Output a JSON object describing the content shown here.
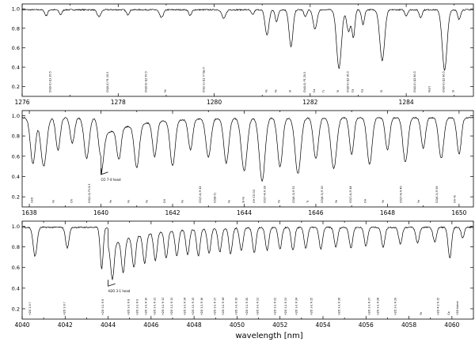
{
  "chart_data": [
    {
      "type": "line",
      "panel": "top",
      "xlim": [
        1276,
        1285.4
      ],
      "ylim": [
        0.1,
        1.05
      ],
      "xticks": [
        1276,
        1278,
        1280,
        1282,
        1284
      ],
      "yticks": [
        0.2,
        0.4,
        0.6,
        0.8,
        1.0
      ],
      "ytick_labels": [
        "0.2",
        "0.4",
        "0.6",
        "0.8",
        "1.0"
      ],
      "continuum": 0.99,
      "lines": [
        {
          "x": 1276.5,
          "depth": 0.06,
          "width": 0.03
        },
        {
          "x": 1276.8,
          "depth": 0.05,
          "width": 0.03
        },
        {
          "x": 1277.6,
          "depth": 0.07,
          "width": 0.04
        },
        {
          "x": 1278.2,
          "depth": 0.05,
          "width": 0.03
        },
        {
          "x": 1278.9,
          "depth": 0.08,
          "width": 0.04
        },
        {
          "x": 1279.5,
          "depth": 0.06,
          "width": 0.03
        },
        {
          "x": 1280.2,
          "depth": 0.09,
          "width": 0.04
        },
        {
          "x": 1280.8,
          "depth": 0.05,
          "width": 0.03
        },
        {
          "x": 1281.1,
          "depth": 0.26,
          "width": 0.04
        },
        {
          "x": 1281.3,
          "depth": 0.12,
          "width": 0.03
        },
        {
          "x": 1281.6,
          "depth": 0.38,
          "width": 0.04
        },
        {
          "x": 1281.9,
          "depth": 0.07,
          "width": 0.03
        },
        {
          "x": 1282.1,
          "depth": 0.2,
          "width": 0.04
        },
        {
          "x": 1282.6,
          "depth": 0.6,
          "width": 0.05
        },
        {
          "x": 1282.8,
          "depth": 0.22,
          "width": 0.04
        },
        {
          "x": 1282.9,
          "depth": 0.28,
          "width": 0.03
        },
        {
          "x": 1283.1,
          "depth": 0.15,
          "width": 0.03
        },
        {
          "x": 1283.5,
          "depth": 0.52,
          "width": 0.05
        },
        {
          "x": 1284.0,
          "depth": 0.06,
          "width": 0.03
        },
        {
          "x": 1284.3,
          "depth": 0.08,
          "width": 0.03
        },
        {
          "x": 1284.8,
          "depth": 0.62,
          "width": 0.05
        },
        {
          "x": 1285.1,
          "depth": 0.1,
          "width": 0.03
        }
      ],
      "annotations": [
        {
          "x": 1276.6,
          "text": "CN(0-0) Q1 20.5"
        },
        {
          "x": 1277.8,
          "text": "CN(0-0) P1 20.5"
        },
        {
          "x": 1278.6,
          "text": "CN(0-0) Q2 50.5"
        },
        {
          "x": 1279.0,
          "text": "Fe"
        },
        {
          "x": 1279.8,
          "text": "CN(1-1) Q1 ?? tau h"
        },
        {
          "x": 1281.1,
          "text": "Fe"
        },
        {
          "x": 1281.3,
          "text": "Fe"
        },
        {
          "x": 1281.6,
          "text": "Si"
        },
        {
          "x": 1281.9,
          "text": "CN(0-0) P1 20.5"
        },
        {
          "x": 1282.1,
          "text": "Ca"
        },
        {
          "x": 1282.3,
          "text": "Ti"
        },
        {
          "x": 1282.6,
          "text": "Si"
        },
        {
          "x": 1282.8,
          "text": "CN(0-0) Q2 90.5"
        },
        {
          "x": 1282.9,
          "text": "Ca"
        },
        {
          "x": 1283.1,
          "text": "Ca"
        },
        {
          "x": 1283.5,
          "text": "Si"
        },
        {
          "x": 1284.2,
          "text": "CN(0-0) Q2 80.5"
        },
        {
          "x": 1284.5,
          "text": "Fe(?)"
        },
        {
          "x": 1284.8,
          "text": "CN(0-0) Q2 80.5"
        },
        {
          "x": 1285.0,
          "text": "Si"
        }
      ]
    },
    {
      "type": "line",
      "panel": "middle",
      "xlim": [
        1637.8,
        1650.4
      ],
      "ylim": [
        0.1,
        1.05
      ],
      "xticks": [
        1638,
        1640,
        1642,
        1644,
        1646,
        1648,
        1650
      ],
      "yticks": [
        0.2,
        0.4,
        0.6,
        0.8,
        1.0
      ],
      "ytick_labels": [
        "0.2",
        "0.4",
        "0.6",
        "0.8",
        "1.0"
      ],
      "continuum": 0.98,
      "lines": [
        {
          "x": 1638.1,
          "depth": 0.45,
          "width": 0.07
        },
        {
          "x": 1638.4,
          "depth": 0.48,
          "width": 0.08
        },
        {
          "x": 1638.8,
          "depth": 0.32,
          "width": 0.06
        },
        {
          "x": 1639.2,
          "depth": 0.25,
          "width": 0.06
        },
        {
          "x": 1639.6,
          "depth": 0.4,
          "width": 0.07
        },
        {
          "x": 1640.0,
          "depth": 0.38,
          "width": 0.07
        },
        {
          "x": 1640.5,
          "depth": 0.3,
          "width": 0.06
        },
        {
          "x": 1641.0,
          "depth": 0.42,
          "width": 0.07
        },
        {
          "x": 1641.5,
          "depth": 0.34,
          "width": 0.06
        },
        {
          "x": 1642.0,
          "depth": 0.45,
          "width": 0.07
        },
        {
          "x": 1642.5,
          "depth": 0.3,
          "width": 0.06
        },
        {
          "x": 1643.0,
          "depth": 0.38,
          "width": 0.07
        },
        {
          "x": 1643.5,
          "depth": 0.44,
          "width": 0.07
        },
        {
          "x": 1644.0,
          "depth": 0.52,
          "width": 0.08
        },
        {
          "x": 1644.5,
          "depth": 0.62,
          "width": 0.08
        },
        {
          "x": 1645.0,
          "depth": 0.48,
          "width": 0.07
        },
        {
          "x": 1645.5,
          "depth": 0.55,
          "width": 0.08
        },
        {
          "x": 1646.0,
          "depth": 0.4,
          "width": 0.07
        },
        {
          "x": 1646.5,
          "depth": 0.5,
          "width": 0.08
        },
        {
          "x": 1647.0,
          "depth": 0.36,
          "width": 0.06
        },
        {
          "x": 1647.5,
          "depth": 0.46,
          "width": 0.07
        },
        {
          "x": 1648.0,
          "depth": 0.32,
          "width": 0.06
        },
        {
          "x": 1648.5,
          "depth": 0.44,
          "width": 0.07
        },
        {
          "x": 1649.0,
          "depth": 0.3,
          "width": 0.06
        },
        {
          "x": 1649.5,
          "depth": 0.4,
          "width": 0.07
        },
        {
          "x": 1650.0,
          "depth": 0.36,
          "width": 0.06
        }
      ],
      "annotations": [
        {
          "x": 1638.1,
          "text": "H2O"
        },
        {
          "x": 1638.7,
          "text": "Fe"
        },
        {
          "x": 1639.2,
          "text": "CN"
        },
        {
          "x": 1639.7,
          "text": "OH(2-0) P1 6.5"
        },
        {
          "x": 1640.3,
          "text": "Fe"
        },
        {
          "x": 1640.8,
          "text": "Fe"
        },
        {
          "x": 1641.3,
          "text": "Fe"
        },
        {
          "x": 1641.8,
          "text": "OH"
        },
        {
          "x": 1642.3,
          "text": "Fe"
        },
        {
          "x": 1642.8,
          "text": "CO(7-4) R 42"
        },
        {
          "x": 1643.2,
          "text": "CO(8-5)"
        },
        {
          "x": 1643.6,
          "text": "Fe"
        },
        {
          "x": 1644.0,
          "text": "Si Fe"
        },
        {
          "x": 1644.3,
          "text": "OH CO CO"
        },
        {
          "x": 1644.6,
          "text": "CO(7-4) R 38"
        },
        {
          "x": 1645.0,
          "text": "Fe"
        },
        {
          "x": 1645.4,
          "text": "CO(6-3) R 52"
        },
        {
          "x": 1645.8,
          "text": "Ti"
        },
        {
          "x": 1646.2,
          "text": "CO(8-5) R 30"
        },
        {
          "x": 1646.6,
          "text": "Fe"
        },
        {
          "x": 1647.0,
          "text": "CO(7-4) R 44"
        },
        {
          "x": 1647.4,
          "text": "OH"
        },
        {
          "x": 1647.9,
          "text": "Fe"
        },
        {
          "x": 1648.4,
          "text": "CO(7-4) R 40"
        },
        {
          "x": 1648.9,
          "text": "Fe"
        },
        {
          "x": 1649.4,
          "text": "CO(6-3) R 56"
        },
        {
          "x": 1649.9,
          "text": "OH Fe"
        }
      ],
      "band_head": {
        "x": 1640.0,
        "y": 0.42,
        "text": "CO 7-4 head"
      }
    },
    {
      "type": "line",
      "panel": "bottom",
      "xlim": [
        4040,
        4061
      ],
      "ylim": [
        0.1,
        1.05
      ],
      "xticks": [
        4040,
        4042,
        4044,
        4046,
        4048,
        4050,
        4052,
        4054,
        4056,
        4058,
        4060
      ],
      "yticks": [
        0.2,
        0.4,
        0.6,
        0.8,
        1.0
      ],
      "ytick_labels": [
        "0.2",
        "0.4",
        "0.6",
        "0.8",
        "1.0"
      ],
      "continuum": 0.99,
      "lines": [
        {
          "x": 4040.6,
          "depth": 0.28,
          "width": 0.09
        },
        {
          "x": 4042.1,
          "depth": 0.2,
          "width": 0.08
        },
        {
          "x": 4043.7,
          "depth": 0.4,
          "width": 0.07
        },
        {
          "x": 4044.2,
          "depth": 0.34,
          "width": 0.08
        },
        {
          "x": 4044.7,
          "depth": 0.32,
          "width": 0.08
        },
        {
          "x": 4045.2,
          "depth": 0.3,
          "width": 0.08
        },
        {
          "x": 4045.7,
          "depth": 0.28,
          "width": 0.08
        },
        {
          "x": 4046.2,
          "depth": 0.27,
          "width": 0.08
        },
        {
          "x": 4046.7,
          "depth": 0.26,
          "width": 0.08
        },
        {
          "x": 4047.2,
          "depth": 0.25,
          "width": 0.08
        },
        {
          "x": 4047.7,
          "depth": 0.24,
          "width": 0.08
        },
        {
          "x": 4048.2,
          "depth": 0.26,
          "width": 0.08
        },
        {
          "x": 4048.7,
          "depth": 0.24,
          "width": 0.08
        },
        {
          "x": 4049.2,
          "depth": 0.23,
          "width": 0.08
        },
        {
          "x": 4049.7,
          "depth": 0.25,
          "width": 0.08
        },
        {
          "x": 4050.2,
          "depth": 0.22,
          "width": 0.08
        },
        {
          "x": 4050.8,
          "depth": 0.24,
          "width": 0.08
        },
        {
          "x": 4051.4,
          "depth": 0.22,
          "width": 0.08
        },
        {
          "x": 4052.0,
          "depth": 0.21,
          "width": 0.08
        },
        {
          "x": 4052.6,
          "depth": 0.22,
          "width": 0.08
        },
        {
          "x": 4053.2,
          "depth": 0.2,
          "width": 0.08
        },
        {
          "x": 4053.9,
          "depth": 0.21,
          "width": 0.08
        },
        {
          "x": 4054.6,
          "depth": 0.19,
          "width": 0.08
        },
        {
          "x": 4055.3,
          "depth": 0.2,
          "width": 0.08
        },
        {
          "x": 4056.0,
          "depth": 0.18,
          "width": 0.08
        },
        {
          "x": 4056.8,
          "depth": 0.19,
          "width": 0.08
        },
        {
          "x": 4057.6,
          "depth": 0.16,
          "width": 0.08
        },
        {
          "x": 4058.4,
          "depth": 0.15,
          "width": 0.08
        },
        {
          "x": 4059.2,
          "depth": 0.14,
          "width": 0.08
        },
        {
          "x": 4059.9,
          "depth": 0.3,
          "width": 0.08
        },
        {
          "x": 4060.5,
          "depth": 0.1,
          "width": 0.07
        }
      ],
      "annotations": [
        {
          "x": 4040.4,
          "text": "H2O 1-0 ?"
        },
        {
          "x": 4042.0,
          "text": "H2O 1-0 ?"
        },
        {
          "x": 4043.8,
          "text": "H2O 3-1 R 6"
        },
        {
          "x": 4045.0,
          "text": "H2O 3-1 R 8"
        },
        {
          "x": 4045.4,
          "text": "H2O 3-1 R 9"
        },
        {
          "x": 4045.8,
          "text": "H2O 3-1 R 10"
        },
        {
          "x": 4046.2,
          "text": "H2O 3-1 R 11"
        },
        {
          "x": 4046.6,
          "text": "H2O 3-1 R 12"
        },
        {
          "x": 4047.0,
          "text": "H2O 3-1 R 13"
        },
        {
          "x": 4047.6,
          "text": "H2O 3-1 R 14"
        },
        {
          "x": 4048.0,
          "text": "H2O 3-1 R 15"
        },
        {
          "x": 4048.4,
          "text": "H2O 3-1 R 16"
        },
        {
          "x": 4049.0,
          "text": "H2O 3-1 R 17"
        },
        {
          "x": 4049.4,
          "text": "H2O 3-1 R 18"
        },
        {
          "x": 4050.0,
          "text": "H2O 3-1 R 19"
        },
        {
          "x": 4050.5,
          "text": "H2O 3-1 R 20"
        },
        {
          "x": 4051.0,
          "text": "H2O 3-1 R 21"
        },
        {
          "x": 4051.8,
          "text": "H2O 3-1 R 22"
        },
        {
          "x": 4052.3,
          "text": "H2O 3-1 R 23"
        },
        {
          "x": 4052.8,
          "text": "H2O 3-1 R 24"
        },
        {
          "x": 4053.5,
          "text": "H2O 3-1 R 25"
        },
        {
          "x": 4054.8,
          "text": "H2O 3-1 R 26"
        },
        {
          "x": 4056.2,
          "text": "H2O 3-1 R 27"
        },
        {
          "x": 4056.6,
          "text": "H2O 3-1 R 28"
        },
        {
          "x": 4057.4,
          "text": "H2O 3-1 R 29"
        },
        {
          "x": 4058.6,
          "text": "Fe"
        },
        {
          "x": 4059.4,
          "text": "H2O 4-2 R 15"
        },
        {
          "x": 4059.9,
          "text": "Ca"
        },
        {
          "x": 4060.3,
          "text": "H2O blend"
        }
      ],
      "band_head": {
        "x": 4044.0,
        "y": 0.42,
        "text": "H2O 3-1 head"
      }
    }
  ],
  "xlabel": "wavelength [nm]"
}
